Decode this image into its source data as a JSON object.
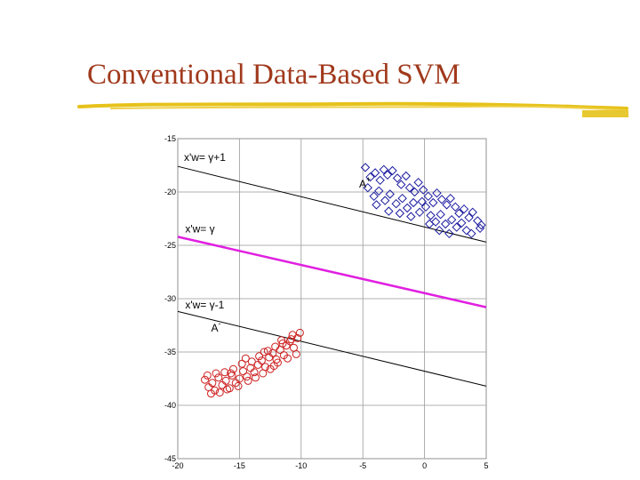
{
  "slide": {
    "title": "Conventional Data-Based SVM",
    "title_color": "#a0391c",
    "underline_color": "#e6c21a"
  },
  "chart_data": {
    "type": "scatter",
    "title": "",
    "xlabel": "",
    "ylabel": "",
    "xlim": [
      -20,
      5
    ],
    "ylim": [
      -45,
      -15
    ],
    "x_ticks": [
      -20,
      -15,
      -10,
      -5,
      0,
      5
    ],
    "y_ticks": [
      -15,
      -20,
      -25,
      -30,
      -35,
      -40,
      -45
    ],
    "x_tick_labels": [
      "-20",
      "-15",
      "-10",
      "-5",
      "0",
      "5"
    ],
    "y_tick_labels": [
      "-15",
      "-20",
      "-25",
      "-30",
      "-35",
      "-40",
      "-45"
    ],
    "grid": true,
    "series": [
      {
        "name": "A+",
        "marker": "diamond",
        "color": "#1a1aa0",
        "points": [
          [
            -4.8,
            -17.7
          ],
          [
            -4.4,
            -18.6
          ],
          [
            -4.0,
            -18.2
          ],
          [
            -3.6,
            -18.9
          ],
          [
            -3.3,
            -17.9
          ],
          [
            -3.0,
            -18.4
          ],
          [
            -2.6,
            -18.0
          ],
          [
            -2.2,
            -18.7
          ],
          [
            -1.9,
            -19.3
          ],
          [
            -1.5,
            -18.5
          ],
          [
            -1.2,
            -19.6
          ],
          [
            -0.8,
            -20.0
          ],
          [
            -0.5,
            -19.1
          ],
          [
            -0.1,
            -19.8
          ],
          [
            0.3,
            -20.4
          ],
          [
            0.7,
            -21.0
          ],
          [
            1.0,
            -20.1
          ],
          [
            1.4,
            -20.7
          ],
          [
            1.8,
            -21.2
          ],
          [
            2.1,
            -20.6
          ],
          [
            2.5,
            -21.4
          ],
          [
            2.8,
            -22.0
          ],
          [
            3.2,
            -21.6
          ],
          [
            3.6,
            -22.4
          ],
          [
            3.9,
            -21.9
          ],
          [
            4.3,
            -22.7
          ],
          [
            4.6,
            -23.1
          ],
          [
            -4.6,
            -19.6
          ],
          [
            -4.1,
            -20.4
          ],
          [
            -3.7,
            -19.9
          ],
          [
            -3.2,
            -20.8
          ],
          [
            -2.8,
            -20.2
          ],
          [
            -2.3,
            -21.1
          ],
          [
            -1.8,
            -20.6
          ],
          [
            -1.4,
            -21.5
          ],
          [
            -0.9,
            -21.0
          ],
          [
            -0.4,
            -21.9
          ],
          [
            0.1,
            -21.4
          ],
          [
            0.5,
            -22.2
          ],
          [
            0.9,
            -22.8
          ],
          [
            1.3,
            -22.1
          ],
          [
            1.7,
            -23.0
          ],
          [
            2.2,
            -22.6
          ],
          [
            2.6,
            -23.3
          ],
          [
            3.0,
            -22.9
          ],
          [
            3.4,
            -23.6
          ],
          [
            -2.9,
            -21.8
          ],
          [
            -2.0,
            -22.0
          ],
          [
            -1.1,
            -22.3
          ],
          [
            0.4,
            -23.0
          ],
          [
            1.2,
            -23.6
          ],
          [
            2.0,
            -23.9
          ],
          [
            -3.9,
            -21.2
          ],
          [
            -0.2,
            -20.9
          ],
          [
            3.8,
            -23.9
          ],
          [
            4.5,
            -23.4
          ]
        ]
      },
      {
        "name": "A-",
        "marker": "circle",
        "color": "#cc1f1f",
        "points": [
          [
            -17.8,
            -37.6
          ],
          [
            -17.5,
            -38.3
          ],
          [
            -17.2,
            -37.9
          ],
          [
            -17.0,
            -38.6
          ],
          [
            -16.7,
            -37.4
          ],
          [
            -16.4,
            -38.1
          ],
          [
            -16.1,
            -37.7
          ],
          [
            -15.8,
            -38.4
          ],
          [
            -15.6,
            -37.2
          ],
          [
            -15.3,
            -37.9
          ],
          [
            -15.0,
            -37.5
          ],
          [
            -14.7,
            -36.8
          ],
          [
            -14.4,
            -37.3
          ],
          [
            -14.1,
            -36.5
          ],
          [
            -13.8,
            -36.9
          ],
          [
            -13.5,
            -36.2
          ],
          [
            -13.2,
            -35.8
          ],
          [
            -12.9,
            -36.4
          ],
          [
            -12.6,
            -35.5
          ],
          [
            -12.3,
            -35.1
          ],
          [
            -12.0,
            -35.7
          ],
          [
            -11.7,
            -34.8
          ],
          [
            -11.4,
            -35.3
          ],
          [
            -11.2,
            -34.4
          ],
          [
            -10.9,
            -34.0
          ],
          [
            -10.6,
            -34.6
          ],
          [
            -10.3,
            -33.7
          ],
          [
            -10.1,
            -33.2
          ],
          [
            -17.6,
            -37.2
          ],
          [
            -16.9,
            -37.0
          ],
          [
            -16.2,
            -36.9
          ],
          [
            -15.5,
            -36.6
          ],
          [
            -14.8,
            -36.1
          ],
          [
            -14.0,
            -35.9
          ],
          [
            -13.4,
            -35.4
          ],
          [
            -12.7,
            -34.9
          ],
          [
            -12.1,
            -34.5
          ],
          [
            -11.5,
            -34.2
          ],
          [
            -10.8,
            -33.8
          ],
          [
            -10.4,
            -35.2
          ],
          [
            -11.1,
            -35.6
          ],
          [
            -11.9,
            -36.0
          ],
          [
            -12.5,
            -36.6
          ],
          [
            -13.1,
            -37.0
          ],
          [
            -13.7,
            -37.4
          ],
          [
            -14.3,
            -37.7
          ],
          [
            -15.1,
            -38.2
          ],
          [
            -16.0,
            -38.5
          ],
          [
            -16.6,
            -38.8
          ],
          [
            -17.3,
            -38.9
          ],
          [
            -13.0,
            -35.0
          ],
          [
            -12.2,
            -36.3
          ],
          [
            -11.6,
            -33.9
          ],
          [
            -10.7,
            -33.4
          ],
          [
            -14.5,
            -35.6
          ],
          [
            -15.7,
            -37.0
          ]
        ]
      }
    ],
    "lines": [
      {
        "name": "x'w= γ+1",
        "color": "#000000",
        "from": [
          -20,
          -17.6
        ],
        "to": [
          5,
          -24.7
        ]
      },
      {
        "name": "x'w= γ",
        "color": "#e020e0",
        "from": [
          -20,
          -24.2
        ],
        "to": [
          5,
          -30.8
        ]
      },
      {
        "name": "x'w= γ-1",
        "color": "#000000",
        "from": [
          -20,
          -31.2
        ],
        "to": [
          5,
          -38.2
        ]
      }
    ],
    "annotations": [
      {
        "text": "x'w= γ+1",
        "x": -19.5,
        "y": -17.1,
        "color": "#000000"
      },
      {
        "text": "x'w= γ",
        "x": -19.4,
        "y": -23.8,
        "color": "#cc1f1f"
      },
      {
        "text": "x'w= γ-1",
        "x": -19.4,
        "y": -30.9,
        "color": "#000000"
      },
      {
        "text": "A+",
        "x": -5.3,
        "y": -19.6,
        "color": "#cc1f1f"
      },
      {
        "text": "A-",
        "x": -17.3,
        "y": -33.1,
        "color": "#cc1f1f"
      }
    ]
  }
}
